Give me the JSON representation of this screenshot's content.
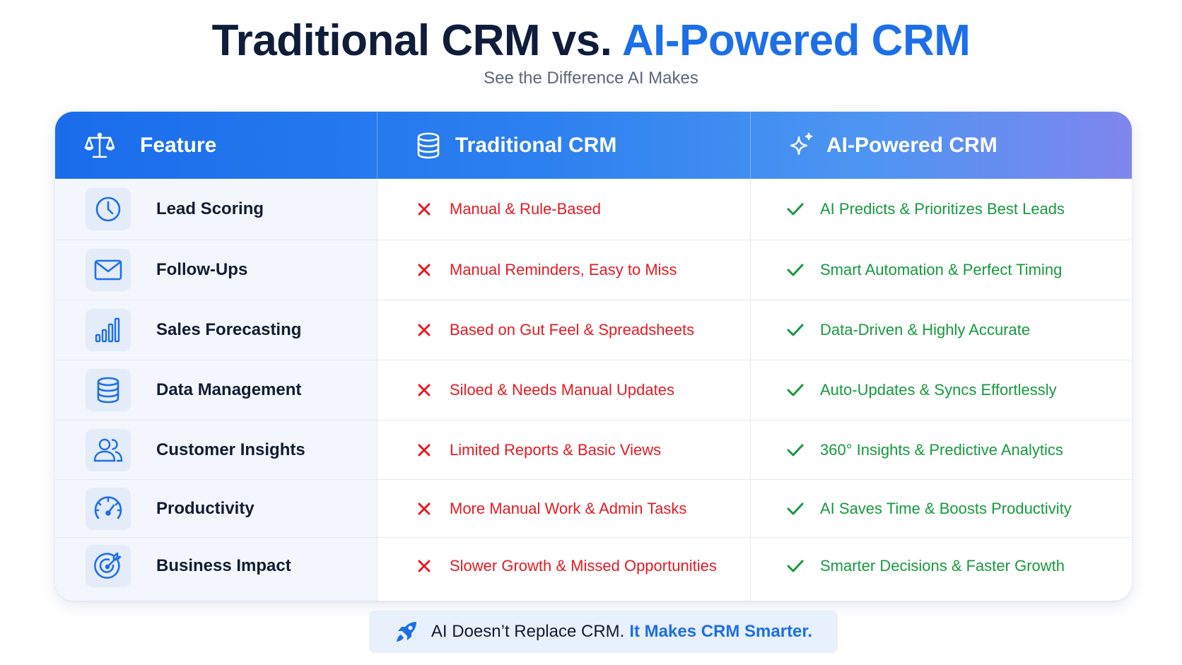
{
  "header": {
    "title_part1": "Traditional CRM vs.",
    "title_part2": "AI-Powered CRM",
    "subtitle": "See the Difference AI Makes"
  },
  "table": {
    "columns": [
      {
        "label": "Feature",
        "icon": "scale-icon"
      },
      {
        "label": "Traditional CRM",
        "icon": "database-icon"
      },
      {
        "label": "AI-Powered CRM",
        "icon": "sparkle-icon"
      }
    ],
    "rows": [
      {
        "feature": "Lead Scoring",
        "icon": "clock-icon",
        "traditional": "Manual & Rule-Based",
        "ai": "AI Predicts & Prioritizes Best Leads"
      },
      {
        "feature": "Follow-Ups",
        "icon": "mail-icon",
        "traditional": "Manual Reminders, Easy to Miss",
        "ai": "Smart Automation & Perfect Timing"
      },
      {
        "feature": "Sales Forecasting",
        "icon": "bar-chart-icon",
        "traditional": "Based on Gut Feel & Spreadsheets",
        "ai": "Data-Driven & Highly Accurate"
      },
      {
        "feature": "Data Management",
        "icon": "database-icon",
        "traditional": "Siloed & Needs Manual Updates",
        "ai": "Auto-Updates & Syncs Effortlessly"
      },
      {
        "feature": "Customer Insights",
        "icon": "users-icon",
        "traditional": "Limited Reports & Basic Views",
        "ai": "360° Insights & Predictive Analytics"
      },
      {
        "feature": "Productivity",
        "icon": "speedometer-icon",
        "traditional": "More Manual Work & Admin Tasks",
        "ai": "AI Saves Time & Boosts Productivity"
      },
      {
        "feature": "Business Impact",
        "icon": "target-icon",
        "traditional": "Slower Growth & Missed Opportunities",
        "ai": "Smarter Decisions & Faster Growth"
      }
    ]
  },
  "footer": {
    "icon": "rocket-icon",
    "text": "AI Doesn’t Replace CRM.",
    "highlight": "It Makes CRM Smarter."
  },
  "colors": {
    "accent": "#1d6fe8",
    "negative": "#e21b24",
    "positive": "#17993f",
    "title": "#0f1d3a"
  }
}
